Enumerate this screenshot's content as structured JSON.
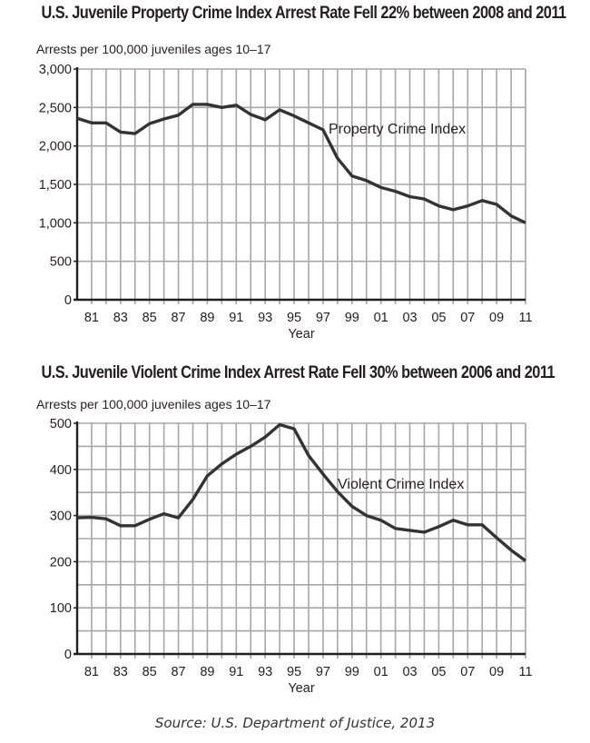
{
  "page": {
    "source": "Source: U.S. Department of Justice, 2013"
  },
  "charts": [
    {
      "title": "U.S. Juvenile Property Crime Index Arrest Rate Fell 22% between 2008 and 2011",
      "ylabel": "Arrests per 100,000 juveniles ages 10–17",
      "xlabel": "Year",
      "series_label": "Property Crime Index",
      "yticks": [
        "0",
        "500",
        "1,000",
        "1,500",
        "2,000",
        "2,500",
        "3,000"
      ],
      "xticks": [
        "81",
        "83",
        "85",
        "87",
        "89",
        "91",
        "93",
        "95",
        "97",
        "99",
        "01",
        "03",
        "05",
        "07",
        "09",
        "11"
      ]
    },
    {
      "title": "U.S. Juvenile Violent Crime Index Arrest Rate Fell 30% between 2006 and 2011",
      "ylabel": "Arrests per 100,000 juveniles ages 10–17",
      "xlabel": "Year",
      "series_label": "Violent Crime Index",
      "yticks": [
        "0",
        "100",
        "200",
        "300",
        "400",
        "500"
      ],
      "xticks": [
        "81",
        "83",
        "85",
        "87",
        "89",
        "91",
        "93",
        "95",
        "97",
        "99",
        "01",
        "03",
        "05",
        "07",
        "09",
        "11"
      ]
    }
  ],
  "chart_data": [
    {
      "type": "line",
      "title": "U.S. Juvenile Property Crime Index Arrest Rate Fell 22% between 2008 and 2011",
      "xlabel": "Year",
      "ylabel": "Arrests per 100,000 juveniles ages 10–17",
      "x": [
        1980,
        1981,
        1982,
        1983,
        1984,
        1985,
        1986,
        1987,
        1988,
        1989,
        1990,
        1991,
        1992,
        1993,
        1994,
        1995,
        1996,
        1997,
        1998,
        1999,
        2000,
        2001,
        2002,
        2003,
        2004,
        2005,
        2006,
        2007,
        2008,
        2009,
        2010,
        2011
      ],
      "series": [
        {
          "name": "Property Crime Index",
          "values": [
            2360,
            2300,
            2300,
            2180,
            2160,
            2290,
            2350,
            2400,
            2540,
            2540,
            2500,
            2530,
            2410,
            2340,
            2470,
            2390,
            2300,
            2210,
            1840,
            1610,
            1550,
            1460,
            1410,
            1340,
            1310,
            1220,
            1170,
            1220,
            1290,
            1240,
            1090,
            1000
          ]
        }
      ],
      "xtick_labels": [
        "81",
        "83",
        "85",
        "87",
        "89",
        "91",
        "93",
        "95",
        "97",
        "99",
        "01",
        "03",
        "05",
        "07",
        "09",
        "11"
      ],
      "ylim": [
        0,
        3000
      ],
      "ytick_step": 500,
      "grid": true,
      "legend": "inline label",
      "color": "#333333"
    },
    {
      "type": "line",
      "title": "U.S. Juvenile Violent Crime Index Arrest Rate Fell 30% between 2006 and 2011",
      "xlabel": "Year",
      "ylabel": "Arrests per 100,000 juveniles ages 10–17",
      "x": [
        1980,
        1981,
        1982,
        1983,
        1984,
        1985,
        1986,
        1987,
        1988,
        1989,
        1990,
        1991,
        1992,
        1993,
        1994,
        1995,
        1996,
        1997,
        1998,
        1999,
        2000,
        2001,
        2002,
        2003,
        2004,
        2005,
        2006,
        2007,
        2008,
        2009,
        2010,
        2011
      ],
      "series": [
        {
          "name": "Violent Crime Index",
          "values": [
            295,
            296,
            293,
            278,
            278,
            292,
            304,
            295,
            335,
            386,
            412,
            433,
            450,
            470,
            497,
            488,
            430,
            390,
            352,
            320,
            300,
            290,
            272,
            268,
            264,
            276,
            290,
            280,
            280,
            252,
            225,
            202
          ]
        }
      ],
      "xtick_labels": [
        "81",
        "83",
        "85",
        "87",
        "89",
        "91",
        "93",
        "95",
        "97",
        "99",
        "01",
        "03",
        "05",
        "07",
        "09",
        "11"
      ],
      "ylim": [
        0,
        500
      ],
      "ytick_step": 100,
      "grid": true,
      "legend": "inline label",
      "color": "#333333"
    }
  ]
}
